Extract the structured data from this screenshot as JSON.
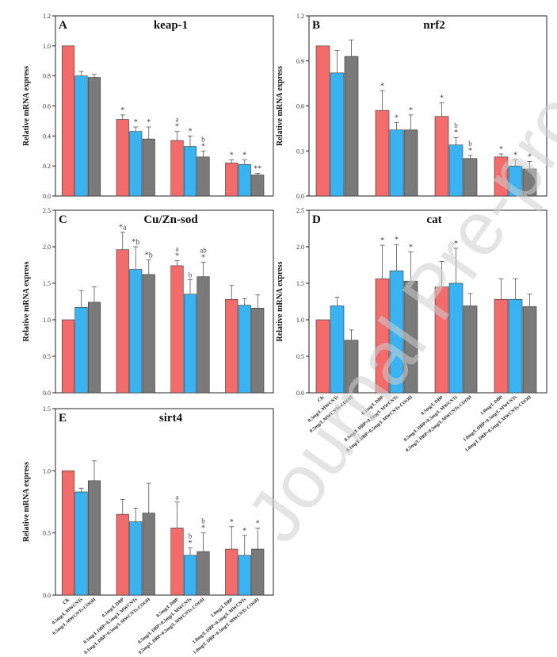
{
  "watermark": "Journal Pre-proof",
  "colors": {
    "red": "#f36b6b",
    "blue": "#3ab3f2",
    "gray": "#7a7a7a",
    "axis": "#222222"
  },
  "shared": {
    "ylabel": "Relative mRNA express",
    "groups": 4,
    "series": [
      "0",
      "MWCNTs",
      "MWCNTs-COOH"
    ]
  },
  "chart_data": [
    {
      "id": "A",
      "type": "bar",
      "title": "keap-1",
      "ylim": [
        0,
        1.2
      ],
      "yticks": [
        "0.0",
        "0.2",
        "0.4",
        "0.6",
        "0.8",
        "1.0",
        "1.2"
      ],
      "values": [
        1.0,
        0.8,
        0.79,
        0.51,
        0.43,
        0.38,
        0.37,
        0.33,
        0.26,
        0.22,
        0.21,
        0.14
      ],
      "errors": [
        0,
        0.03,
        0.02,
        0.03,
        0.03,
        0.08,
        0.06,
        0.07,
        0.04,
        0.02,
        0.03,
        0.01
      ],
      "annotations": [
        "",
        "",
        "",
        "*",
        "*",
        "*",
        "*\na",
        "*",
        "*\nb",
        "*",
        "*",
        "**"
      ],
      "xlabels": []
    },
    {
      "id": "B",
      "type": "bar",
      "title": "nrf2",
      "ylim": [
        0,
        1.2
      ],
      "yticks": [
        "0.0",
        "0.3",
        "0.6",
        "0.9",
        "1.2"
      ],
      "values": [
        1.0,
        0.82,
        0.93,
        0.57,
        0.44,
        0.44,
        0.53,
        0.34,
        0.25,
        0.26,
        0.2,
        0.18
      ],
      "errors": [
        0,
        0.15,
        0.11,
        0.13,
        0.05,
        0.1,
        0.09,
        0.05,
        0.02,
        0.02,
        0.04,
        0.05
      ],
      "annotations": [
        "",
        "",
        "",
        "*",
        "*",
        "*",
        "*",
        "*\nb",
        "*\nb",
        "*",
        "*",
        "*"
      ],
      "xlabels": []
    },
    {
      "id": "C",
      "type": "bar",
      "title": "Cu/Zn-sod",
      "ylim": [
        0,
        2.5
      ],
      "yticks": [
        "0.0",
        "0.5",
        "1.0",
        "1.5",
        "2.0",
        "2.5"
      ],
      "values": [
        1.0,
        1.17,
        1.24,
        1.96,
        1.69,
        1.62,
        1.74,
        1.35,
        1.59,
        1.28,
        1.2,
        1.16
      ],
      "errors": [
        0,
        0.23,
        0.21,
        0.24,
        0.31,
        0.2,
        0.07,
        0.2,
        0.2,
        0.19,
        0.09,
        0.18
      ],
      "annotations": [
        "",
        "",
        "",
        "*a",
        "*b",
        "*b",
        "*\na",
        "b",
        "*\nab",
        "",
        "",
        ""
      ],
      "xlabels": []
    },
    {
      "id": "D",
      "type": "bar",
      "title": "cat",
      "ylim": [
        0,
        2.5
      ],
      "yticks": [
        "0.0",
        "0.5",
        "1.0",
        "1.5",
        "2.0",
        "2.5"
      ],
      "values": [
        1.0,
        1.19,
        0.72,
        1.56,
        1.67,
        1.53,
        1.45,
        1.5,
        1.19,
        1.28,
        1.28,
        1.18
      ],
      "errors": [
        0,
        0.12,
        0.14,
        0.46,
        0.36,
        0.4,
        0.35,
        0.48,
        0.17,
        0.28,
        0.28,
        0.17
      ],
      "annotations": [
        "",
        "",
        "",
        "*",
        "*",
        "*",
        "",
        "*",
        "",
        "",
        "",
        ""
      ],
      "xlabels": [
        "CK",
        "0.5mg/L MWCNTs",
        "0.5mg/L MWCNTs-COOH",
        "0.1mg/L DBP",
        "0.1mg/L DBP+0.5mg/L MWCNTs",
        "0.1mg/L DBP+0.5mg/L MWCNTs-COOH",
        "0.5mg/L DBP",
        "0.5mg/L DBP+0.5mg/L MWCNTs",
        "0.5mg/L DBP+0.5mg/L MWCNTs-COOH",
        "1.0mg/L DBP",
        "1.0mg/L DBP+0.5mg/L MWCNTs",
        "1.0mg/L DBP+0.5mg/L MWCNTs-COOH"
      ]
    },
    {
      "id": "E",
      "type": "bar",
      "title": "sirt4",
      "ylim": [
        0,
        1.5
      ],
      "yticks": [
        "0.0",
        "0.5",
        "1.0",
        "1.5"
      ],
      "values": [
        1.0,
        0.83,
        0.92,
        0.65,
        0.59,
        0.66,
        0.54,
        0.32,
        0.35,
        0.37,
        0.32,
        0.37
      ],
      "errors": [
        0,
        0.03,
        0.16,
        0.12,
        0.11,
        0.24,
        0.21,
        0.06,
        0.15,
        0.18,
        0.16,
        0.17
      ],
      "annotations": [
        "",
        "",
        "",
        "",
        "",
        "",
        "a",
        "*\nb",
        "*\nb",
        "*",
        "*",
        "*"
      ],
      "xlabels": [
        "CK",
        "0.5mg/L MWCNTs",
        "0.5mg/L MWCNTs-COOH",
        "0.1mg/L DBP",
        "0.1mg/L DBP+0.5mg/L MWCNTs",
        "0.1mg/L DBP+0.5mg/L MWCNTs-COOH",
        "0.5mg/L DBP",
        "0.5mg/L DBP+0.5mg/L MWCNTs",
        "0.5mg/L DBP+0.5mg/L MWCNTs-COOH",
        "1.0mg/L DBP",
        "1.0mg/L DBP+0.5mg/L MWCNTs",
        "1.0mg/L DBP+0.5mg/L MWCNTs-COOH"
      ]
    }
  ]
}
